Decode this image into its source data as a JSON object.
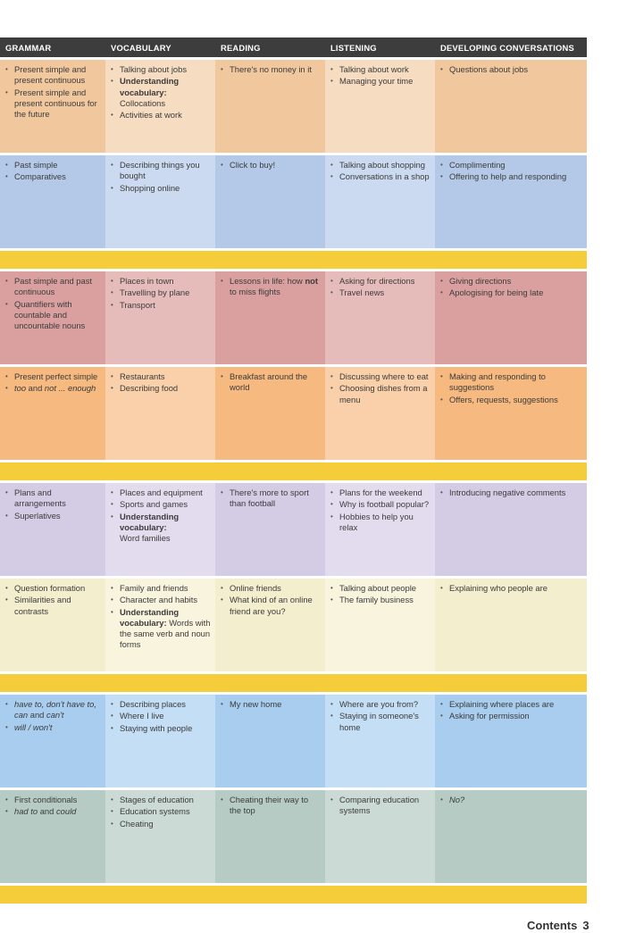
{
  "headers": [
    "GRAMMAR",
    "VOCABULARY",
    "READING",
    "LISTENING",
    "DEVELOPING CONVERSATIONS"
  ],
  "rows": [
    {
      "cells": [
        [
          "Present simple and present continuous",
          "Present simple and present continuous for the future"
        ],
        [
          "Talking about jobs",
          "Understanding vocabulary:",
          "Collocations",
          "Activities at work"
        ],
        [
          "There's no money in it"
        ],
        [
          "Talking about work",
          "Managing your time"
        ],
        [
          "Questions about jobs"
        ]
      ]
    },
    {
      "cells": [
        [
          "Past simple",
          "Comparatives"
        ],
        [
          "Describing things you bought",
          "Shopping online"
        ],
        [
          "Click to buy!"
        ],
        [
          "Talking about shopping",
          "Conversations in a shop"
        ],
        [
          "Complimenting",
          "Offering to help and responding"
        ]
      ]
    },
    {
      "cells": [
        [
          "Past simple and past continuous",
          "Quantifiers with countable and uncountable nouns"
        ],
        [
          "Places in town",
          "Travelling by plane",
          "Transport"
        ],
        [
          "Lessons in life: how",
          "not",
          "to miss flights"
        ],
        [
          "Asking for directions",
          "Travel news"
        ],
        [
          "Giving directions",
          "Apologising for being late"
        ]
      ]
    },
    {
      "cells": [
        [
          "Present perfect simple",
          "too",
          "and",
          "not ... enough"
        ],
        [
          "Restaurants",
          "Describing food"
        ],
        [
          "Breakfast around the world"
        ],
        [
          "Discussing where to eat",
          "Choosing dishes from a menu"
        ],
        [
          "Making and responding to suggestions",
          "Offers, requests, suggestions"
        ]
      ]
    },
    {
      "cells": [
        [
          "Plans and arrangements",
          "Superlatives"
        ],
        [
          "Places and equipment",
          "Sports and games",
          "Understanding vocabulary:",
          "Word families"
        ],
        [
          "There's more to sport than football"
        ],
        [
          "Plans for the weekend",
          "Why is football popular?",
          "Hobbies to help you relax"
        ],
        [
          "Introducing negative comments"
        ]
      ]
    },
    {
      "cells": [
        [
          "Question formation",
          "Similarities and contrasts"
        ],
        [
          "Family and friends",
          "Character and habits",
          "Understanding vocabulary:",
          "Words with the same verb and noun forms"
        ],
        [
          "Online friends",
          "What kind of an online friend are you?"
        ],
        [
          "Talking about people",
          "The family business"
        ],
        [
          "Explaining who people are"
        ]
      ]
    },
    {
      "cells": [
        [
          "have to, don't have to, can",
          "and",
          "can't",
          "will / won't"
        ],
        [
          "Describing places",
          "Where I live",
          "Staying with people"
        ],
        [
          "My new home"
        ],
        [
          "Where are you from?",
          "Staying in someone's home"
        ],
        [
          "Explaining where places are",
          "Asking for permission"
        ]
      ]
    },
    {
      "cells": [
        [
          "First conditionals",
          "had to",
          "and",
          "could"
        ],
        [
          "Stages of education",
          "Education systems",
          "Cheating"
        ],
        [
          "Cheating their way to the top"
        ],
        [
          "Comparing education systems"
        ],
        [
          "No?"
        ]
      ]
    }
  ],
  "colors": {
    "header_bg": "#3d3d3d",
    "band": "#f5cd3a",
    "row1": [
      "#f1c79e",
      "#f6dcc1"
    ],
    "row2": [
      "#b4c9e8",
      "#cbdaf0"
    ],
    "row3": [
      "#d9a09f",
      "#e6bcbb"
    ],
    "row4": [
      "#f6b97f",
      "#f9d0a9"
    ],
    "row5": [
      "#d4cbe4",
      "#e3dcee"
    ],
    "row6": [
      "#f3eecd",
      "#f8f4de"
    ],
    "row7": [
      "#a8cdee",
      "#c3def5"
    ],
    "row8": [
      "#b6cbc3",
      "#cbdad5"
    ]
  },
  "footer": {
    "label": "Contents",
    "page": "3"
  }
}
